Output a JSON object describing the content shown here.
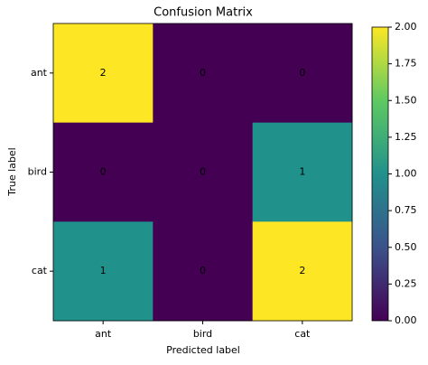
{
  "chart_data": {
    "type": "heatmap",
    "title": "Confusion Matrix",
    "x_label": "Predicted label",
    "y_label": "True label",
    "x_categories": [
      "ant",
      "bird",
      "cat"
    ],
    "y_categories": [
      "ant",
      "bird",
      "cat"
    ],
    "values": [
      [
        2,
        0,
        0
      ],
      [
        0,
        0,
        1
      ],
      [
        1,
        0,
        2
      ]
    ],
    "colorscale": [
      "#440154",
      "#3b528b",
      "#21918c",
      "#5ec962",
      "#fde725"
    ],
    "clim": [
      0,
      2
    ],
    "cticks": [
      {
        "value": 0,
        "label": "0.00"
      },
      {
        "value": 0.25,
        "label": "0.25"
      },
      {
        "value": 0.5,
        "label": "0.50"
      },
      {
        "value": 0.75,
        "label": "0.75"
      },
      {
        "value": 1,
        "label": "1.00"
      },
      {
        "value": 1.25,
        "label": "1.25"
      },
      {
        "value": 1.5,
        "label": "1.50"
      },
      {
        "value": 1.75,
        "label": "1.75"
      },
      {
        "value": 2,
        "label": "2.00"
      }
    ]
  }
}
